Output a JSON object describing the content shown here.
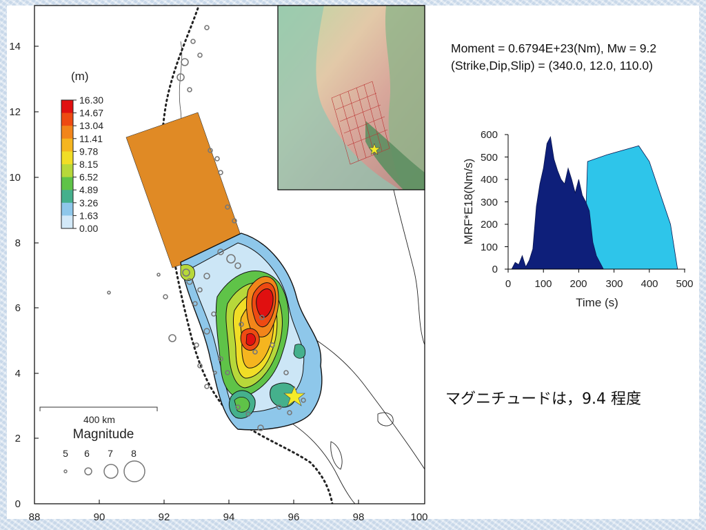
{
  "colors": {
    "fault_patch": "#e08a25",
    "mrf_dark": "#0e1f7a",
    "mrf_light": "#2ec5ea",
    "epicenter_star": "#f4ec2a",
    "trench_dots": "#222222"
  },
  "map": {
    "x_ticks": [
      "88",
      "90",
      "92",
      "94",
      "96",
      "98",
      "100"
    ],
    "y_ticks": [
      "0",
      "2",
      "4",
      "6",
      "8",
      "10",
      "12",
      "14"
    ],
    "xlim": [
      88,
      100
    ],
    "ylim": [
      0,
      15
    ]
  },
  "colorbar": {
    "unit": "(m)",
    "labels": [
      "16.30",
      "14.67",
      "13.04",
      "11.41",
      "9.78",
      "8.15",
      "6.52",
      "4.89",
      "3.26",
      "1.63",
      "0.00"
    ],
    "colors": [
      "#e01010",
      "#ee4a12",
      "#f2851a",
      "#f5b51f",
      "#f1dd26",
      "#b7d83a",
      "#5fc348",
      "#45b08c",
      "#8ec7ea",
      "#d3e9f8",
      "#ffffff"
    ]
  },
  "scale": {
    "distance_label": "400 km",
    "magnitude_title": "Magnitude",
    "magnitude_labels": [
      "5",
      "6",
      "7",
      "8"
    ]
  },
  "source_params": {
    "moment_line": "Moment = 0.6794E+23(Nm), Mw = 9.2",
    "mechanism_line": "(Strike,Dip,Slip) = (340.0, 12.0,  110.0)"
  },
  "chart_data": {
    "type": "area",
    "xlabel": "Time (s)",
    "ylabel": "MRF*E18(Nm/s)",
    "xlim": [
      0,
      500
    ],
    "ylim": [
      0,
      600
    ],
    "x_ticks": [
      "0",
      "100",
      "200",
      "300",
      "400",
      "500"
    ],
    "y_ticks": [
      "0",
      "100",
      "200",
      "300",
      "400",
      "500",
      "600"
    ],
    "series": [
      {
        "x": [
          10,
          20,
          30,
          40,
          50,
          60,
          70,
          80,
          90,
          100,
          110,
          120,
          130,
          140,
          150,
          160,
          170,
          180,
          190,
          200,
          210,
          220,
          230,
          240,
          250,
          260,
          270
        ],
        "y": [
          0,
          30,
          20,
          60,
          10,
          40,
          90,
          280,
          380,
          450,
          560,
          590,
          490,
          440,
          400,
          380,
          450,
          400,
          340,
          400,
          330,
          300,
          260,
          120,
          60,
          30,
          0
        ]
      },
      {
        "x": [
          215,
          225,
          280,
          370,
          400,
          460,
          480
        ],
        "y": [
          0,
          480,
          510,
          550,
          480,
          200,
          0
        ]
      }
    ]
  },
  "note": "マグニチュードは，9.4 程度"
}
